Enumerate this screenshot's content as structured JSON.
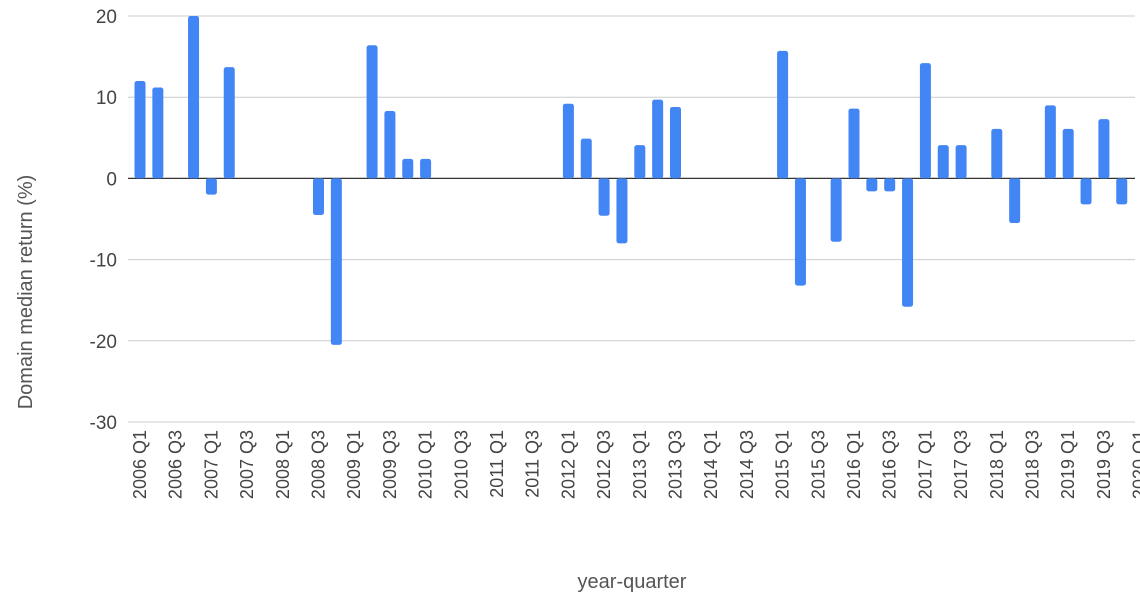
{
  "chart_data": {
    "type": "bar",
    "xlabel": "year-quarter",
    "ylabel": "Domain median return (%)",
    "ylim": [
      -30,
      20
    ],
    "yticks": [
      20,
      10,
      0,
      -10,
      -20,
      -30
    ],
    "grid": true,
    "color": "#4285f4",
    "categories": [
      "2006 Q1",
      "2006 Q2",
      "2006 Q3",
      "2006 Q4",
      "2007 Q1",
      "2007 Q2",
      "2007 Q3",
      "2007 Q4",
      "2008 Q1",
      "2008 Q2",
      "2008 Q3",
      "2008 Q4",
      "2009 Q1",
      "2009 Q2",
      "2009 Q3",
      "2009 Q4",
      "2010 Q1",
      "2010 Q2",
      "2010 Q3",
      "2010 Q4",
      "2011 Q1",
      "2011 Q2",
      "2011 Q3",
      "2011 Q4",
      "2012 Q1",
      "2012 Q2",
      "2012 Q3",
      "2012 Q4",
      "2013 Q1",
      "2013 Q2",
      "2013 Q3",
      "2013 Q4",
      "2014 Q1",
      "2014 Q2",
      "2014 Q3",
      "2014 Q4",
      "2015 Q1",
      "2015 Q2",
      "2015 Q3",
      "2015 Q4",
      "2016 Q1",
      "2016 Q2",
      "2016 Q3",
      "2016 Q4",
      "2017 Q1",
      "2017 Q2",
      "2017 Q3",
      "2017 Q4",
      "2018 Q1",
      "2018 Q2",
      "2018 Q3",
      "2018 Q4",
      "2019 Q1",
      "2019 Q2",
      "2019 Q3",
      "2019 Q4",
      "2020 Q1"
    ],
    "tick_labels": [
      "2006 Q1",
      "2006 Q3",
      "2007 Q1",
      "2007 Q3",
      "2008 Q1",
      "2008 Q3",
      "2009 Q1",
      "2009 Q3",
      "2010 Q1",
      "2010 Q3",
      "2011 Q1",
      "2011 Q3",
      "2012 Q1",
      "2012 Q3",
      "2013 Q1",
      "2013 Q3",
      "2014 Q1",
      "2014 Q3",
      "2015 Q1",
      "2015 Q3",
      "2016 Q1",
      "2016 Q3",
      "2017 Q1",
      "2017 Q3",
      "2018 Q1",
      "2018 Q3",
      "2019 Q1",
      "2019 Q3",
      "2020 Q1"
    ],
    "values": [
      12.0,
      11.2,
      null,
      20.0,
      -2.0,
      13.7,
      null,
      null,
      null,
      null,
      -4.5,
      -20.5,
      null,
      16.4,
      8.3,
      2.4,
      2.4,
      null,
      null,
      null,
      null,
      null,
      null,
      null,
      9.2,
      4.9,
      -4.6,
      -8.0,
      4.1,
      9.7,
      8.8,
      null,
      null,
      null,
      null,
      null,
      15.7,
      -13.2,
      null,
      -7.8,
      8.6,
      -1.6,
      -1.6,
      -15.8,
      14.2,
      4.1,
      4.1,
      null,
      6.1,
      -5.5,
      null,
      9.0,
      6.1,
      -3.2,
      7.3,
      -3.2,
      null
    ]
  }
}
